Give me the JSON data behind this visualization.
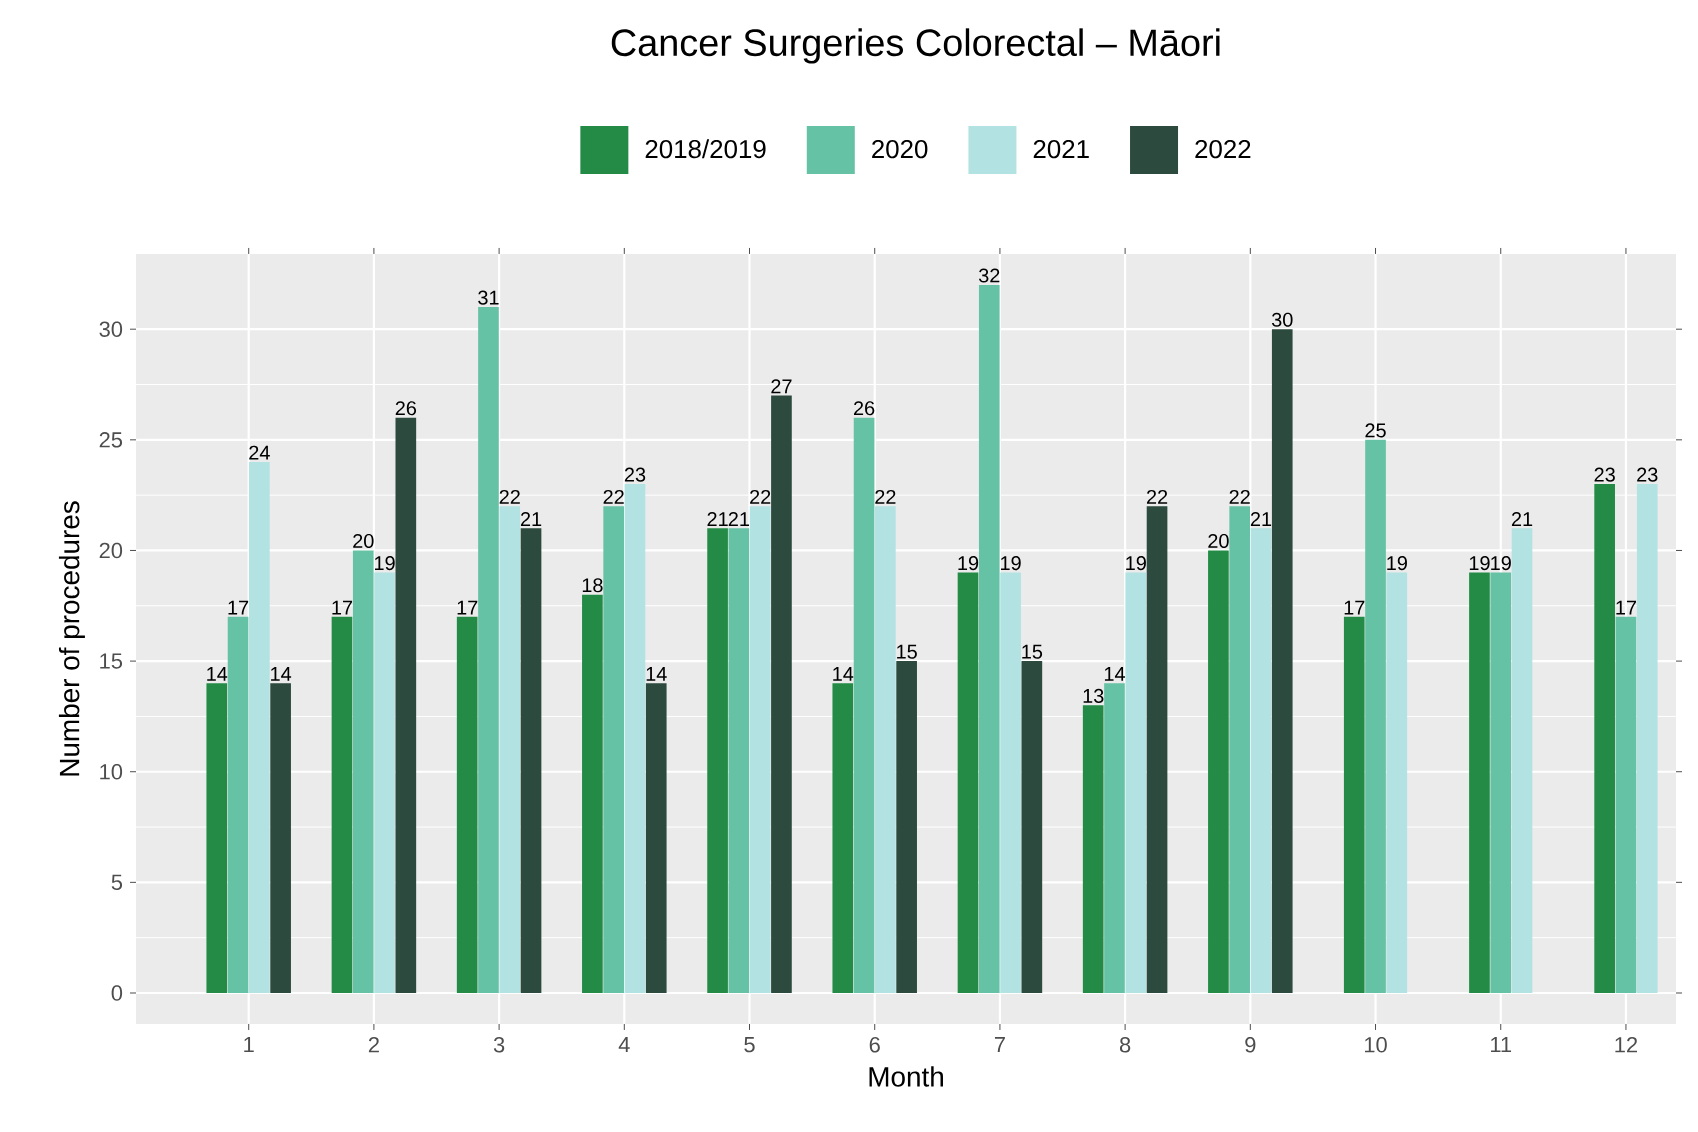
{
  "chart_data": {
    "type": "bar",
    "title": "Cancer Surgeries Colorectal – Māori",
    "xlabel": "Month",
    "ylabel": "Number of procedures",
    "categories": [
      "1",
      "2",
      "3",
      "4",
      "5",
      "6",
      "7",
      "8",
      "9",
      "10",
      "11",
      "12"
    ],
    "series": [
      {
        "name": "2018/2019",
        "color": "#238b45",
        "values": [
          14,
          17,
          17,
          18,
          21,
          14,
          19,
          13,
          20,
          17,
          19,
          23
        ]
      },
      {
        "name": "2020",
        "color": "#66c2a4",
        "values": [
          17,
          20,
          31,
          22,
          21,
          26,
          32,
          14,
          22,
          25,
          19,
          17
        ]
      },
      {
        "name": "2021",
        "color": "#b2e2e2",
        "values": [
          24,
          19,
          22,
          23,
          22,
          22,
          19,
          19,
          21,
          19,
          21,
          23
        ]
      },
      {
        "name": "2022",
        "color": "#2c4a3e",
        "values": [
          14,
          26,
          21,
          14,
          27,
          15,
          15,
          22,
          30,
          null,
          null,
          null
        ]
      }
    ],
    "ylim": [
      -1.4,
      33.4
    ],
    "yticks": [
      0,
      5,
      10,
      15,
      20,
      25,
      30
    ],
    "grid": true,
    "legend": "top",
    "data_labels": true
  }
}
